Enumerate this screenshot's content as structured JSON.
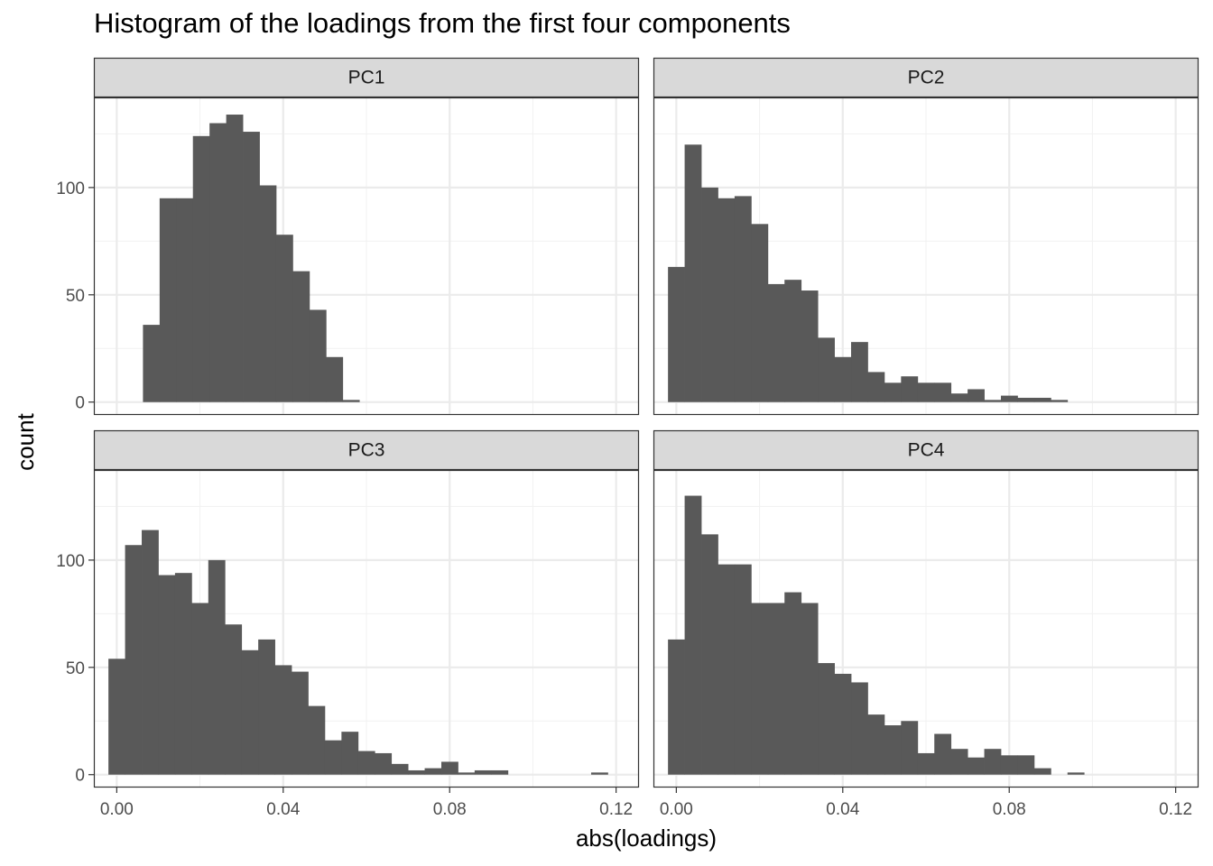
{
  "chart_data": {
    "type": "bar",
    "title": "Histogram of the loadings from the first four components",
    "xlabel": "abs(loadings)",
    "ylabel": "count",
    "xlim": [
      -0.0055,
      0.1255
    ],
    "ylim": [
      -6,
      142
    ],
    "x_ticks": [
      0.0,
      0.04,
      0.08,
      0.12
    ],
    "x_tick_labels": [
      "0.00",
      "0.04",
      "0.08",
      "0.12"
    ],
    "y_ticks": [
      0,
      50,
      100
    ],
    "y_tick_labels": [
      "0",
      "50",
      "100"
    ],
    "grid": true,
    "bar_color": "#595959",
    "strip_fill": "#d9d9d9",
    "facets": [
      {
        "name": "PC1",
        "bin_start": 0.0063,
        "bin_width": 0.004,
        "counts": [
          36,
          95,
          95,
          124,
          130,
          134,
          126,
          101,
          78,
          61,
          43,
          21,
          1
        ]
      },
      {
        "name": "PC2",
        "bin_start": -0.002,
        "bin_width": 0.004,
        "counts": [
          63,
          120,
          100,
          95,
          96,
          83,
          55,
          57,
          52,
          30,
          21,
          28,
          14,
          9,
          12,
          9,
          9,
          4,
          6,
          1,
          3,
          2,
          2,
          1
        ]
      },
      {
        "name": "PC3",
        "bin_start": -0.002,
        "bin_width": 0.004,
        "counts": [
          54,
          107,
          114,
          93,
          94,
          80,
          100,
          70,
          58,
          63,
          51,
          48,
          32,
          16,
          20,
          11,
          10,
          5,
          2,
          3,
          6,
          1,
          2,
          2,
          0,
          0,
          0,
          0,
          0,
          1
        ]
      },
      {
        "name": "PC4",
        "bin_start": -0.002,
        "bin_width": 0.004,
        "counts": [
          63,
          130,
          112,
          98,
          98,
          80,
          80,
          85,
          80,
          52,
          47,
          43,
          28,
          23,
          25,
          10,
          19,
          12,
          8,
          12,
          9,
          9,
          3,
          0,
          1
        ]
      }
    ]
  }
}
